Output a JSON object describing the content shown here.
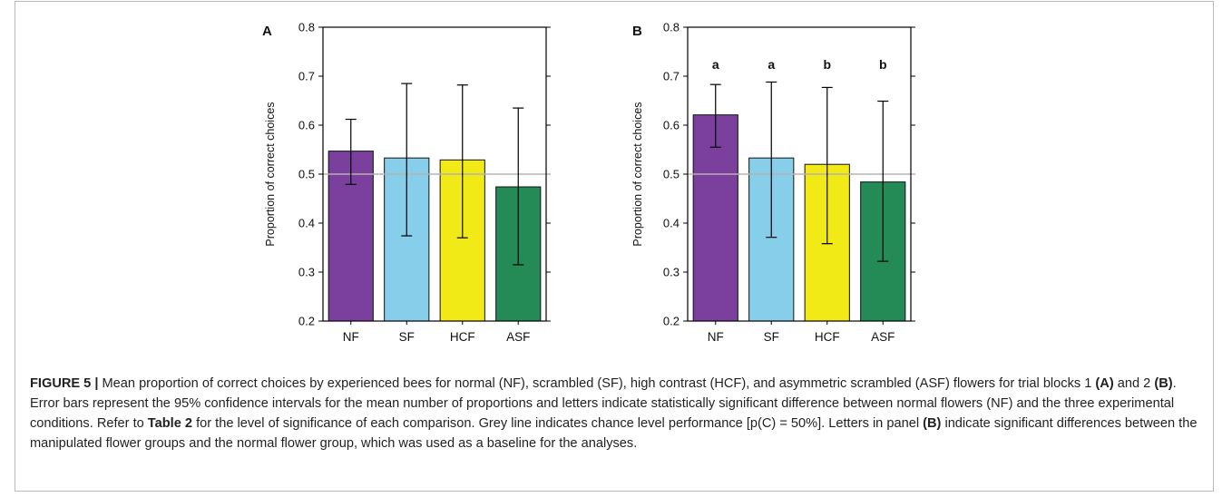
{
  "chart_data": [
    {
      "type": "bar",
      "panel_label": "A",
      "categories": [
        "NF",
        "SF",
        "HCF",
        "ASF"
      ],
      "values": [
        0.547,
        0.533,
        0.529,
        0.474
      ],
      "error_low": [
        0.479,
        0.374,
        0.37,
        0.315
      ],
      "error_high": [
        0.612,
        0.685,
        0.682,
        0.635
      ],
      "significance_letters": [],
      "colors": [
        "#7b3f9e",
        "#87ceeb",
        "#f1ea16",
        "#248a56"
      ],
      "ylabel": "Proportion of correct choices",
      "xlabel": "",
      "ylim": [
        0.2,
        0.8
      ],
      "yticks": [
        "0.2",
        "0.3",
        "0.4",
        "0.5",
        "0.6",
        "0.7",
        "0.8"
      ],
      "reference_line": 0.5,
      "reference_line_color": "#b3b3b3"
    },
    {
      "type": "bar",
      "panel_label": "B",
      "categories": [
        "NF",
        "SF",
        "HCF",
        "ASF"
      ],
      "values": [
        0.621,
        0.533,
        0.52,
        0.484
      ],
      "error_low": [
        0.555,
        0.371,
        0.358,
        0.322
      ],
      "error_high": [
        0.683,
        0.688,
        0.677,
        0.649
      ],
      "significance_letters": [
        "a",
        "a",
        "b",
        "b"
      ],
      "colors": [
        "#7b3f9e",
        "#87ceeb",
        "#f1ea16",
        "#248a56"
      ],
      "ylabel": "Proportion of correct choices",
      "xlabel": "",
      "ylim": [
        0.2,
        0.8
      ],
      "yticks": [
        "0.2",
        "0.3",
        "0.4",
        "0.5",
        "0.6",
        "0.7",
        "0.8"
      ],
      "reference_line": 0.5,
      "reference_line_color": "#b3b3b3"
    }
  ],
  "caption": {
    "label": "FIGURE 5 |",
    "t1": " Mean proportion of correct choices by experienced bees for normal (NF), scrambled (SF), high contrast (HCF), and asymmetric scrambled (ASF) flowers for trial blocks 1 ",
    "r1": "(A)",
    "t2": " and 2 ",
    "r2": "(B)",
    "t3": ". Error bars represent the 95% confidence intervals for the mean number of proportions and letters indicate statistically significant difference between normal flowers (NF) and the three experimental conditions. Refer to ",
    "r3": "Table 2",
    "t4": " for the level of significance of each comparison. Grey line indicates chance level performance [p(C) = 50%]. Letters in panel ",
    "r4": "(B)",
    "t5": " indicate significant differences between the manipulated flower groups and the normal flower group, which was used as a baseline for the analyses."
  }
}
